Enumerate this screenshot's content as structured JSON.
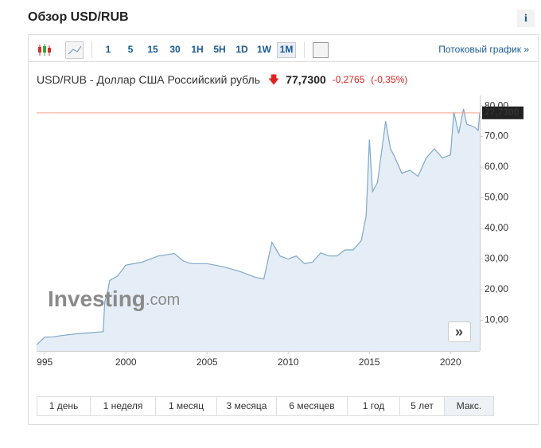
{
  "header": {
    "title": "Обзор USD/RUB",
    "info": "i"
  },
  "toolbar": {
    "intervals": [
      "1",
      "5",
      "15",
      "30",
      "1H",
      "5H",
      "1D",
      "1W",
      "1M"
    ],
    "active": "1M",
    "streaming": "Потоковый график »"
  },
  "quote": {
    "name": "USD/RUB - Доллар США Российский рубль",
    "price": "77,7300",
    "change": "-0,2765",
    "change_pct": "(-0,35%)"
  },
  "watermark": {
    "brand": "Investing",
    "suffix": ".com"
  },
  "ranges": [
    "1 день",
    "1 неделя",
    "1 месяц",
    "3 месяца",
    "6 месяцев",
    "1 год",
    "5 лет",
    "Макс."
  ],
  "active_range": "Макс.",
  "chart_data": {
    "type": "area",
    "color": "#7fa8c9",
    "fill": "#e5eef6",
    "x": [
      1994.5,
      1995,
      1995.5,
      1996,
      1997,
      1998,
      1998.6,
      1998.7,
      1998.9,
      1999,
      1999.5,
      2000,
      2001,
      2002,
      2003,
      2003.5,
      2004,
      2005,
      2006,
      2007,
      2008,
      2008.5,
      2009,
      2009.5,
      2010,
      2010.5,
      2011,
      2011.5,
      2012,
      2012.5,
      2013,
      2013.5,
      2014,
      2014.5,
      2014.8,
      2015,
      2015.2,
      2015.5,
      2016,
      2016.3,
      2016.5,
      2017,
      2017.5,
      2018,
      2018.5,
      2019,
      2019.5,
      2020,
      2020.2,
      2020.5,
      2020.8,
      2021,
      2021.5,
      2021.7,
      2021.8
    ],
    "values": [
      2.0,
      4.5,
      4.6,
      5.0,
      5.6,
      6.0,
      6.3,
      16,
      20,
      23,
      24.5,
      28,
      29,
      31,
      31.8,
      29.5,
      28.5,
      28.5,
      27.5,
      26,
      24,
      23.5,
      35.5,
      31,
      30,
      31,
      28.5,
      29,
      32,
      31,
      31,
      33,
      33,
      36,
      44,
      69,
      52,
      55,
      75,
      66,
      64,
      58,
      59,
      57,
      63,
      66,
      63,
      64,
      78,
      71,
      79,
      74,
      73,
      72,
      77.73
    ],
    "xlim": [
      1994.5,
      2021.8
    ],
    "ylim": [
      0,
      83.4
    ],
    "xticks": [
      {
        "value": 1995,
        "label": "995"
      },
      2000,
      2005,
      2010,
      2015,
      2020
    ],
    "yticks": [
      {
        "value": 10,
        "label": "10,00"
      },
      {
        "value": 20,
        "label": "20,00"
      },
      {
        "value": 30,
        "label": "30,00"
      },
      {
        "value": 40,
        "label": "40,00"
      },
      {
        "value": 50,
        "label": "50,00"
      },
      {
        "value": 60,
        "label": "60,00"
      },
      {
        "value": 70,
        "label": "70,00"
      },
      {
        "value": 80,
        "label": "80,00"
      }
    ],
    "reference_color": "#f0a090"
  }
}
